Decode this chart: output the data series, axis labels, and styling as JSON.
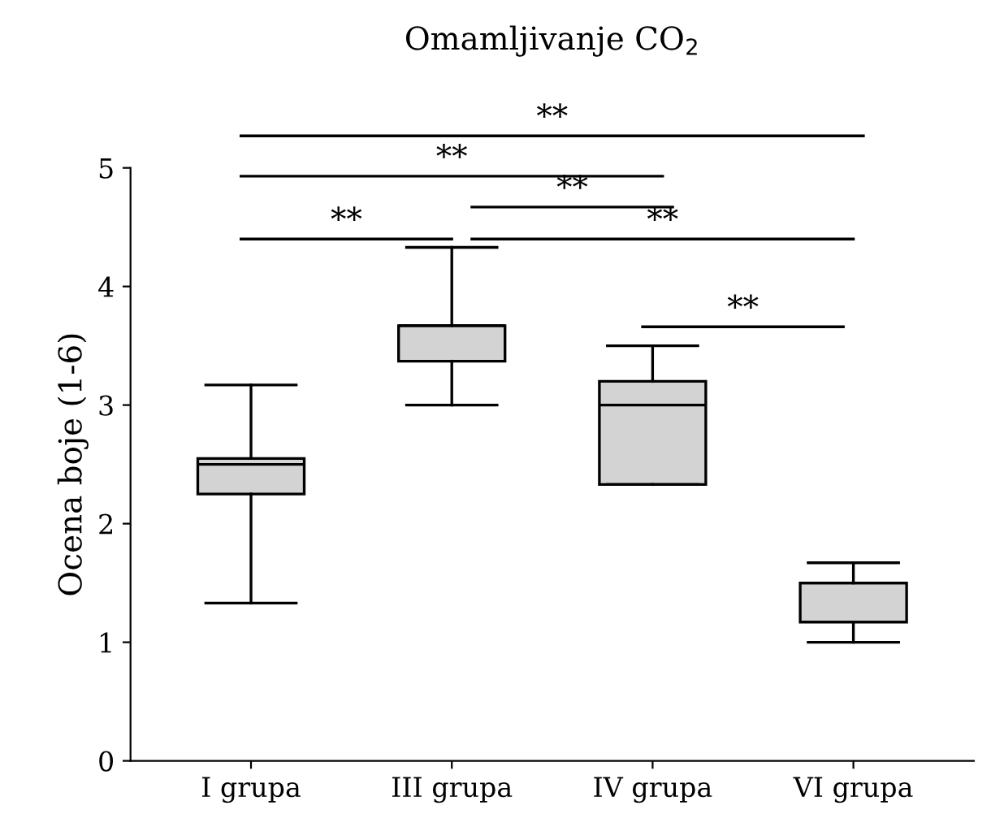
{
  "chart_data": {
    "type": "box",
    "title": "Omamljivanje CO$_{2}$",
    "ylabel": "Ocena boje (1-6)",
    "categories": [
      "I grupa",
      "III grupa",
      "IV grupa",
      "VI grupa"
    ],
    "boxes": [
      {
        "low": 1.33,
        "q1": 2.25,
        "median": 2.5,
        "q3": 2.55,
        "high": 3.17
      },
      {
        "low": 3.0,
        "q1": 3.37,
        "median": 3.67,
        "q3": 3.67,
        "high": 4.33
      },
      {
        "low": 2.33,
        "q1": 2.33,
        "median": 3.0,
        "q3": 3.2,
        "high": 3.5
      },
      {
        "low": 1.0,
        "q1": 1.17,
        "median": 1.5,
        "q3": 1.5,
        "high": 1.67
      }
    ],
    "color": "#d3d3d3",
    "ylim": [
      0,
      5
    ],
    "yticks": [
      0,
      1,
      2,
      3,
      4,
      5
    ],
    "grid": false,
    "legend": false,
    "annotations": [
      "**",
      "**",
      "**",
      "**",
      "**",
      "**"
    ]
  }
}
